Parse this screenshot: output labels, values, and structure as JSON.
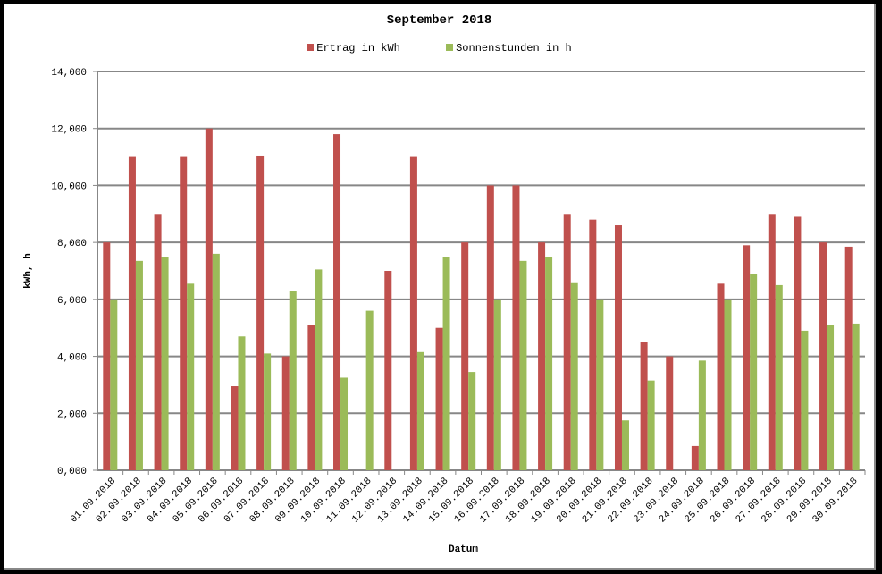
{
  "chart_data": {
    "type": "bar",
    "title": "September 2018",
    "xlabel": "Datum",
    "ylabel": "kWh, h",
    "ylim": [
      0,
      14
    ],
    "yticks": [
      "0,000",
      "2,000",
      "4,000",
      "6,000",
      "8,000",
      "10,000",
      "12,000",
      "14,000"
    ],
    "grid": true,
    "legend_position": "top",
    "categories": [
      "01.09.2018",
      "02.09.2018",
      "03.09.2018",
      "04.09.2018",
      "05.09.2018",
      "06.09.2018",
      "07.09.2018",
      "08.09.2018",
      "09.09.2018",
      "10.09.2018",
      "11.09.2018",
      "12.09.2018",
      "13.09.2018",
      "14.09.2018",
      "15.09.2018",
      "16.09.2018",
      "17.09.2018",
      "18.09.2018",
      "19.09.2018",
      "20.09.2018",
      "21.09.2018",
      "22.09.2018",
      "23.09.2018",
      "24.09.2018",
      "25.09.2018",
      "26.09.2018",
      "27.09.2018",
      "28.09.2018",
      "29.09.2018",
      "30.09.2018"
    ],
    "series": [
      {
        "name": "Ertrag in kWh",
        "color": "#c0504d",
        "values": [
          8.0,
          11.0,
          9.0,
          11.0,
          12.0,
          2.95,
          11.05,
          4.0,
          5.1,
          11.8,
          0,
          7.0,
          11.0,
          5.0,
          8.0,
          10.0,
          10.0,
          8.0,
          9.0,
          8.8,
          8.6,
          4.5,
          4.0,
          0.85,
          6.55,
          7.9,
          9.0,
          8.9,
          8.0,
          7.85
        ]
      },
      {
        "name": "Sonnenstunden in h",
        "color": "#9bbb59",
        "values": [
          6.0,
          7.35,
          7.5,
          6.55,
          7.6,
          4.7,
          4.1,
          6.3,
          7.05,
          3.25,
          5.6,
          0,
          4.15,
          7.5,
          3.45,
          6.0,
          7.35,
          7.5,
          6.6,
          6.0,
          1.75,
          3.15,
          0,
          3.85,
          6.0,
          6.9,
          6.5,
          4.9,
          5.1,
          5.15
        ]
      }
    ]
  }
}
